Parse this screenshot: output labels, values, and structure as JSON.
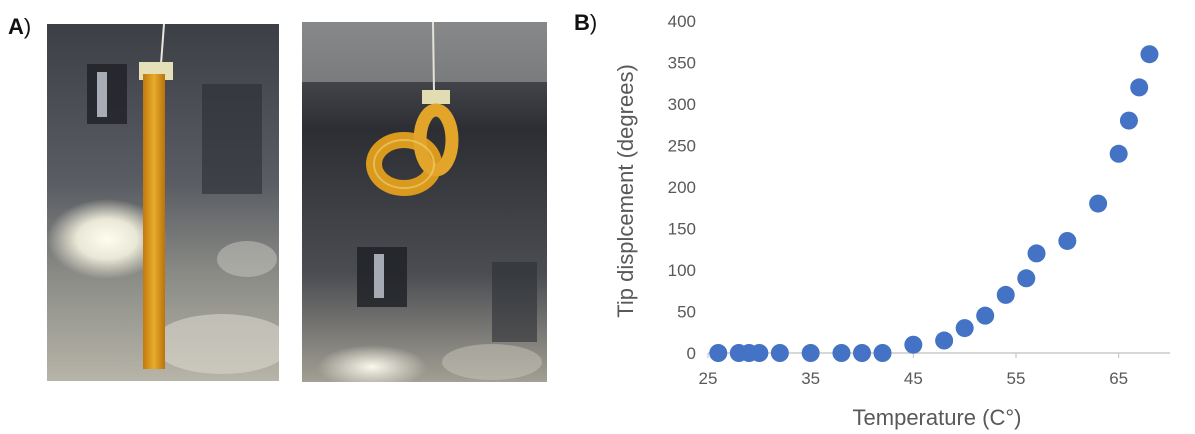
{
  "panels": {
    "a_label": "A",
    "b_label": "B",
    "close_paren": ")"
  },
  "photos": {
    "left": {
      "subject": "straight-strip"
    },
    "right": {
      "subject": "coiled-strip"
    },
    "strip_color": "#d99a1e",
    "background_color": "#4a4c52"
  },
  "chart_data": {
    "type": "scatter",
    "title": "",
    "xlabel": "Temperature (C°)",
    "ylabel": "Tip displcement (degrees)",
    "xlim": [
      25,
      70
    ],
    "ylim": [
      0,
      400
    ],
    "xticks": [
      25,
      35,
      45,
      55,
      65
    ],
    "yticks": [
      0,
      50,
      100,
      150,
      200,
      250,
      300,
      350,
      400
    ],
    "marker_color": "#4472c4",
    "grid": false,
    "series": [
      {
        "x": [
          26,
          28,
          29,
          30,
          32,
          35,
          38,
          40,
          42,
          45,
          48,
          50,
          52,
          54,
          56,
          57,
          60,
          63,
          65,
          66,
          67,
          68
        ],
        "y": [
          0,
          0,
          0,
          0,
          0,
          0,
          0,
          0,
          0,
          10,
          15,
          30,
          45,
          70,
          90,
          120,
          135,
          180,
          240,
          280,
          320,
          360
        ]
      }
    ]
  }
}
